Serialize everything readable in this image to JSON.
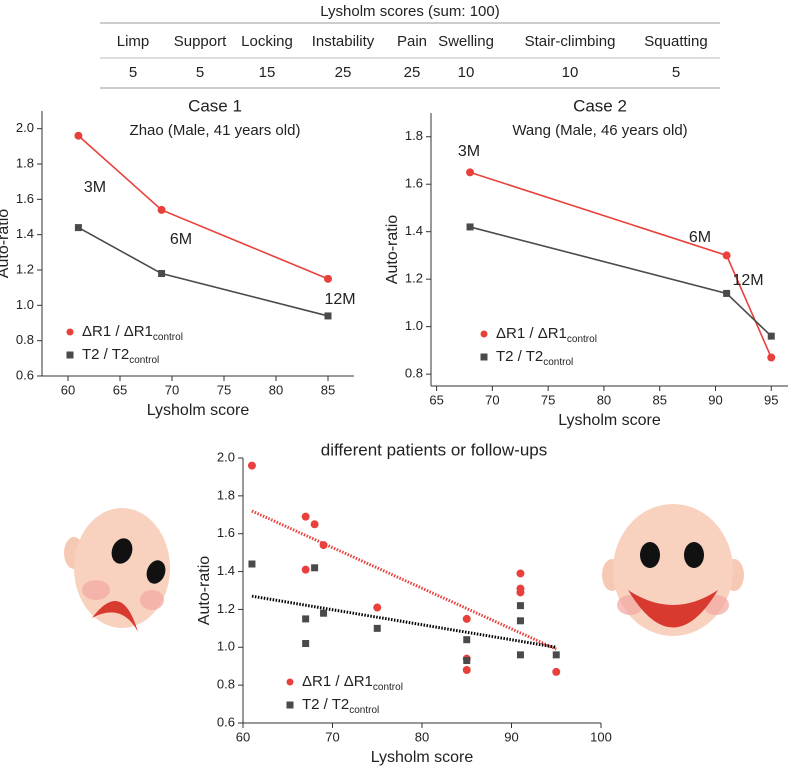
{
  "table": {
    "title": "Lysholm scores (sum: 100)",
    "columns": [
      "Limp",
      "Support",
      "Locking",
      "Instability",
      "Pain",
      "Swelling",
      "Stair-climbing",
      "Squatting"
    ],
    "values": [
      5,
      5,
      15,
      25,
      25,
      10,
      10,
      5
    ]
  },
  "chart_data": [
    {
      "type": "line",
      "title": "Case 1",
      "subtitle": "Zhao (Male, 41 years old)",
      "x_label": "Lysholm score",
      "y_label": "Auto-ratio",
      "x": [
        61,
        69,
        85
      ],
      "annotations": [
        "3M",
        "6M",
        "12M"
      ],
      "series": [
        {
          "name": "ΔR1 / ΔR1",
          "name_subscript": "control",
          "color": "#e8413c",
          "marker": "circle",
          "values": [
            1.96,
            1.54,
            1.15
          ]
        },
        {
          "name": "T2 / T2",
          "name_subscript": "control",
          "color": "#4a4a4a",
          "marker": "square",
          "values": [
            1.44,
            1.18,
            0.94
          ]
        }
      ],
      "xlim": [
        57.5,
        87.5
      ],
      "xticks": [
        60,
        65,
        70,
        75,
        80,
        85
      ],
      "ylim": [
        0.6,
        2.1
      ],
      "yticks": [
        0.6,
        0.8,
        {
          "value": 1,
          "label": "1.0"
        },
        1.2,
        1.4,
        1.6,
        1.8,
        {
          "value": 2,
          "label": "2.0"
        }
      ]
    },
    {
      "type": "line",
      "title": "Case 2",
      "subtitle": "Wang (Male, 46 years old)",
      "x_label": "Lysholm score",
      "y_label": "Auto-ratio",
      "x": [
        68,
        91,
        95
      ],
      "annotations": [
        "3M",
        "6M",
        "12M"
      ],
      "series": [
        {
          "name": "ΔR1 / ΔR1",
          "name_subscript": "control",
          "color": "#e8413c",
          "marker": "circle",
          "values": [
            1.65,
            1.3,
            0.87
          ]
        },
        {
          "name": "T2 / T2",
          "name_subscript": "control",
          "color": "#4a4a4a",
          "marker": "square",
          "values": [
            1.42,
            1.14,
            0.96
          ]
        }
      ],
      "xlim": [
        64.5,
        96.5
      ],
      "xticks": [
        65,
        70,
        75,
        80,
        85,
        90,
        95
      ],
      "ylim": [
        0.75,
        1.9
      ],
      "yticks": [
        0.8,
        {
          "value": 1,
          "label": "1.0"
        },
        1.2,
        1.4,
        1.6,
        1.8
      ]
    },
    {
      "type": "scatter",
      "title": "different patients or follow-ups",
      "x_label": "Lysholm score",
      "y_label": "Auto-ratio",
      "series": [
        {
          "name": "ΔR1 / ΔR1",
          "name_subscript": "control",
          "color": "#e8413c",
          "marker": "circle",
          "x": [
            61,
            67,
            68,
            69,
            67,
            75,
            85,
            85,
            85,
            91,
            91,
            91,
            95
          ],
          "values": [
            1.96,
            1.69,
            1.65,
            1.54,
            1.41,
            1.21,
            1.15,
            0.94,
            0.88,
            1.39,
            1.31,
            1.29,
            0.87
          ]
        },
        {
          "name": "T2 / T2",
          "name_subscript": "control",
          "color": "#4a4a4a",
          "marker": "square",
          "x": [
            61,
            67,
            67,
            68,
            69,
            75,
            85,
            85,
            91,
            91,
            91,
            95
          ],
          "values": [
            1.44,
            1.15,
            1.02,
            1.42,
            1.18,
            1.1,
            1.04,
            0.93,
            1.22,
            1.14,
            0.96,
            0.96
          ]
        }
      ],
      "trendlines": [
        {
          "color": "#e8413c",
          "x": [
            61,
            95
          ],
          "values": [
            1.72,
            0.99
          ]
        },
        {
          "color": "#000000",
          "x": [
            61,
            95
          ],
          "values": [
            1.27,
            1.0
          ]
        }
      ],
      "xlim": [
        60,
        100
      ],
      "xticks": [
        60,
        70,
        80,
        90,
        100
      ],
      "ylim": [
        0.6,
        2.0
      ],
      "yticks": [
        0.6,
        0.8,
        {
          "value": 1,
          "label": "1.0"
        },
        1.2,
        1.4,
        1.6,
        1.8,
        {
          "value": 2,
          "label": "2.0"
        }
      ]
    }
  ]
}
